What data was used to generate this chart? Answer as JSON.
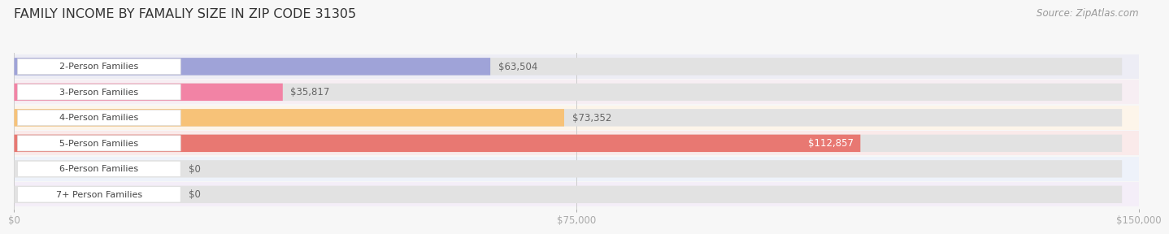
{
  "title": "FAMILY INCOME BY FAMALIY SIZE IN ZIP CODE 31305",
  "source": "Source: ZipAtlas.com",
  "categories": [
    "2-Person Families",
    "3-Person Families",
    "4-Person Families",
    "5-Person Families",
    "6-Person Families",
    "7+ Person Families"
  ],
  "values": [
    63504,
    35817,
    73352,
    112857,
    0,
    0
  ],
  "bar_colors": [
    "#9fa3d8",
    "#f283a5",
    "#f7c278",
    "#e87872",
    "#a8c0e0",
    "#c8aad8"
  ],
  "label_colors": [
    "#555555",
    "#555555",
    "#555555",
    "#ffffff",
    "#555555",
    "#555555"
  ],
  "xlim": [
    0,
    150000
  ],
  "xticks": [
    0,
    75000,
    150000
  ],
  "xtick_labels": [
    "$0",
    "$75,000",
    "$150,000"
  ],
  "title_fontsize": 11.5,
  "source_fontsize": 8.5,
  "bar_label_fontsize": 8.5,
  "background_color": "#f7f7f7",
  "row_bg_colors": [
    "#ededf5",
    "#f7eef3",
    "#fdf5ea",
    "#faeaea",
    "#eef2fa",
    "#f4eef8"
  ],
  "bar_bg_color": "#e2e2e2",
  "gap_color": "#f7f7f7"
}
